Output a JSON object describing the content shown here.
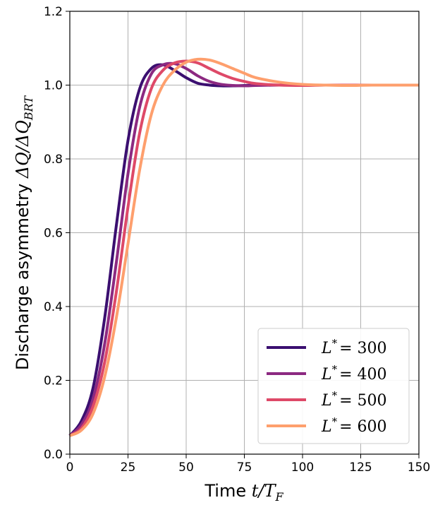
{
  "chart_data": {
    "type": "line",
    "xlabel": {
      "plain": "Time ",
      "math": "t/T",
      "sub": "F"
    },
    "ylabel": {
      "plain": "Discharge asymmetry ",
      "math": "ΔQ/ΔQ",
      "sub": "BRT"
    },
    "xlim": [
      0,
      150
    ],
    "ylim": [
      0.0,
      1.2
    ],
    "xticks": [
      0,
      25,
      50,
      75,
      100,
      125,
      150
    ],
    "yticks": [
      0.0,
      0.2,
      0.4,
      0.6,
      0.8,
      1.0,
      1.2
    ],
    "ytick_labels": [
      "0.0",
      "0.2",
      "0.4",
      "0.6",
      "0.8",
      "1.0",
      "1.2"
    ],
    "grid": true,
    "legend_position": "lower-right",
    "series": [
      {
        "name": "L* = 300",
        "legend_math": "L",
        "legend_sup": "*",
        "legend_value": "= 300",
        "color": "#3b0f70",
        "x": [
          0,
          5,
          10,
          15,
          20,
          25,
          30,
          35,
          40,
          45,
          50,
          55,
          60,
          65,
          70,
          75,
          80,
          90,
          100,
          110,
          120,
          130,
          140,
          150
        ],
        "y": [
          0.05,
          0.09,
          0.18,
          0.37,
          0.62,
          0.85,
          0.99,
          1.045,
          1.055,
          1.04,
          1.02,
          1.005,
          1.0,
          0.998,
          0.998,
          0.999,
          1.0,
          1.0,
          1.0,
          1.0,
          1.0,
          1.0,
          1.0,
          1.0
        ]
      },
      {
        "name": "L* = 400",
        "legend_math": "L",
        "legend_sup": "*",
        "legend_value": "= 400",
        "color": "#8c2981",
        "x": [
          0,
          5,
          10,
          15,
          20,
          25,
          30,
          35,
          40,
          45,
          50,
          55,
          60,
          65,
          70,
          75,
          80,
          90,
          100,
          110,
          120,
          130,
          140,
          150
        ],
        "y": [
          0.05,
          0.08,
          0.15,
          0.3,
          0.52,
          0.76,
          0.94,
          1.03,
          1.055,
          1.058,
          1.045,
          1.025,
          1.01,
          1.002,
          0.999,
          0.998,
          0.999,
          1.0,
          1.0,
          1.0,
          1.0,
          1.0,
          1.0,
          1.0
        ]
      },
      {
        "name": "L* = 500",
        "legend_math": "L",
        "legend_sup": "*",
        "legend_value": "= 500",
        "color": "#de4968",
        "x": [
          0,
          5,
          10,
          15,
          20,
          25,
          30,
          35,
          40,
          45,
          50,
          55,
          60,
          65,
          70,
          75,
          80,
          90,
          100,
          110,
          120,
          130,
          140,
          150
        ],
        "y": [
          0.05,
          0.07,
          0.13,
          0.25,
          0.44,
          0.67,
          0.87,
          0.99,
          1.04,
          1.06,
          1.065,
          1.06,
          1.045,
          1.03,
          1.018,
          1.01,
          1.004,
          1.0,
          0.999,
          1.0,
          1.0,
          1.0,
          1.0,
          1.0
        ]
      },
      {
        "name": "L* = 600",
        "legend_math": "L",
        "legend_sup": "*",
        "legend_value": "= 600",
        "color": "#fe9f6d",
        "x": [
          0,
          5,
          10,
          15,
          20,
          25,
          30,
          35,
          40,
          45,
          50,
          55,
          60,
          65,
          70,
          75,
          80,
          90,
          100,
          110,
          120,
          130,
          140,
          150
        ],
        "y": [
          0.05,
          0.065,
          0.11,
          0.21,
          0.37,
          0.57,
          0.77,
          0.92,
          1.0,
          1.04,
          1.062,
          1.07,
          1.068,
          1.058,
          1.045,
          1.032,
          1.02,
          1.008,
          1.002,
          1.0,
          0.999,
          1.0,
          1.0,
          1.0
        ]
      }
    ]
  }
}
